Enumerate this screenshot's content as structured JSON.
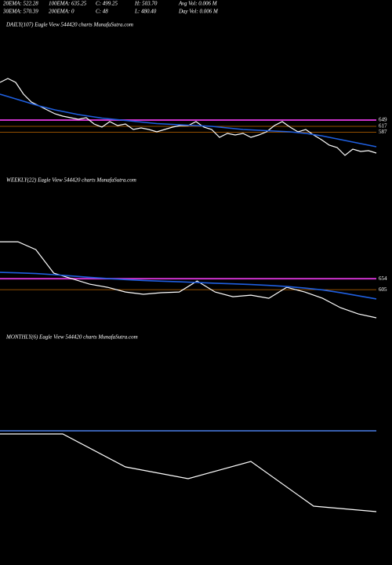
{
  "header": {
    "row1": [
      "20EMA: 522.28",
      "100EMA: 635.25",
      "C: 499.25",
      "H: 503.70",
      "Avg Vol: 0.006  M"
    ],
    "row2": [
      "30EMA: 570.39",
      "200EMA: 0",
      "C: 48",
      "L: 480.40",
      "Day Vol: 0.006  M"
    ]
  },
  "chart_data": [
    {
      "type": "line",
      "title": "DAILY(107) Eagle  View  544420  charts MunafaSutra.com",
      "ylim": [
        361,
        1101
      ],
      "yticks": [
        649,
        617,
        587
      ],
      "grid": true,
      "grid_color": "#c46a00",
      "highlight_color": "#cc33cc",
      "series": [
        {
          "color": "#ffffff",
          "values": [
            841,
            861,
            841,
            781,
            741,
            721,
            701,
            681,
            669,
            661,
            653,
            661,
            629,
            613,
            641,
            621,
            629,
            601,
            609,
            601,
            589,
            601,
            613,
            621,
            621,
            641,
            613,
            601,
            561,
            581,
            573,
            581,
            561,
            573,
            589,
            621,
            641,
            613,
            589,
            601,
            573,
            549,
            521,
            509,
            469,
            501,
            489,
            493,
            481
          ]
        },
        {
          "color": "#1f5fe0",
          "values": [
            781,
            769,
            757,
            745,
            733,
            721,
            711,
            701,
            693,
            685,
            677,
            671,
            665,
            659,
            655,
            651,
            647,
            643,
            639,
            635,
            631,
            629,
            627,
            625,
            623,
            621,
            619,
            617,
            613,
            609,
            605,
            601,
            599,
            597,
            595,
            593,
            591,
            589,
            585,
            581,
            575,
            569,
            561,
            553,
            545,
            537,
            529,
            521,
            513
          ]
        }
      ]
    },
    {
      "type": "line",
      "title": "WEEKLY(22) Eagle  View  544420  charts MunafaSutra.com",
      "ylim": [
        427,
        1057
      ],
      "yticks": [
        654,
        605
      ],
      "grid": true,
      "grid_color": "#c46a00",
      "highlight_color": "#cc33cc",
      "series": [
        {
          "color": "#ffffff",
          "values": [
            818.5,
            818.5,
            783.5,
            678.5,
            654,
            629.5,
            615.5,
            594.5,
            584.5,
            591.5,
            594.5,
            643.5,
            594.5,
            573.5,
            580.5,
            566.5,
            615.5,
            594.5,
            566.5,
            524.5,
            496.5,
            479.5
          ]
        },
        {
          "color": "#1f5fe0",
          "values": [
            682,
            680,
            677,
            672,
            666,
            660,
            655,
            650,
            646,
            643,
            640,
            637,
            634,
            631,
            628,
            624,
            619,
            612,
            604,
            592,
            578,
            564
          ]
        }
      ]
    },
    {
      "type": "line",
      "title": "MONTHLY(6) Eagle  View  544420  charts MunafaSutra.com",
      "ylim": [
        325,
        1135
      ],
      "series": [
        {
          "color": "#ffffff",
          "values": [
            796,
            796,
            670,
            625,
            691,
            520,
            499
          ]
        },
        {
          "color": "#4a7fe8",
          "values": [
            808,
            808,
            808,
            808,
            808,
            808,
            808
          ]
        }
      ]
    }
  ]
}
